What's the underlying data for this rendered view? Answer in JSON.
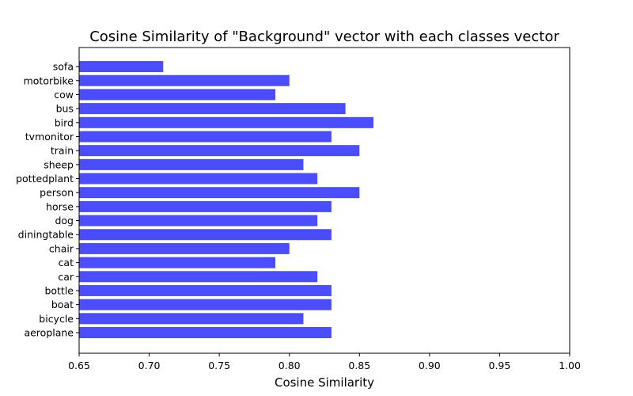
{
  "chart_data": {
    "type": "bar",
    "orientation": "horizontal",
    "title": "Cosine Similarity of \"Background\" vector with each classes vector",
    "xlabel": "Cosine Similarity",
    "ylabel": "",
    "xlim": [
      0.65,
      1.0
    ],
    "xticks": [
      0.65,
      0.7,
      0.75,
      0.8,
      0.85,
      0.9,
      0.95,
      1.0
    ],
    "xtick_labels": [
      "0.65",
      "0.70",
      "0.75",
      "0.80",
      "0.85",
      "0.90",
      "0.95",
      "1.00"
    ],
    "grid": false,
    "bar_color": "#4c4cff",
    "categories": [
      "aeroplane",
      "bicycle",
      "boat",
      "bottle",
      "car",
      "cat",
      "chair",
      "diningtable",
      "dog",
      "horse",
      "person",
      "pottedplant",
      "sheep",
      "train",
      "tvmonitor",
      "bird",
      "bus",
      "cow",
      "motorbike",
      "sofa"
    ],
    "values": [
      0.83,
      0.81,
      0.83,
      0.83,
      0.82,
      0.79,
      0.8,
      0.83,
      0.82,
      0.83,
      0.85,
      0.82,
      0.81,
      0.85,
      0.83,
      0.86,
      0.84,
      0.79,
      0.8,
      0.71
    ]
  }
}
